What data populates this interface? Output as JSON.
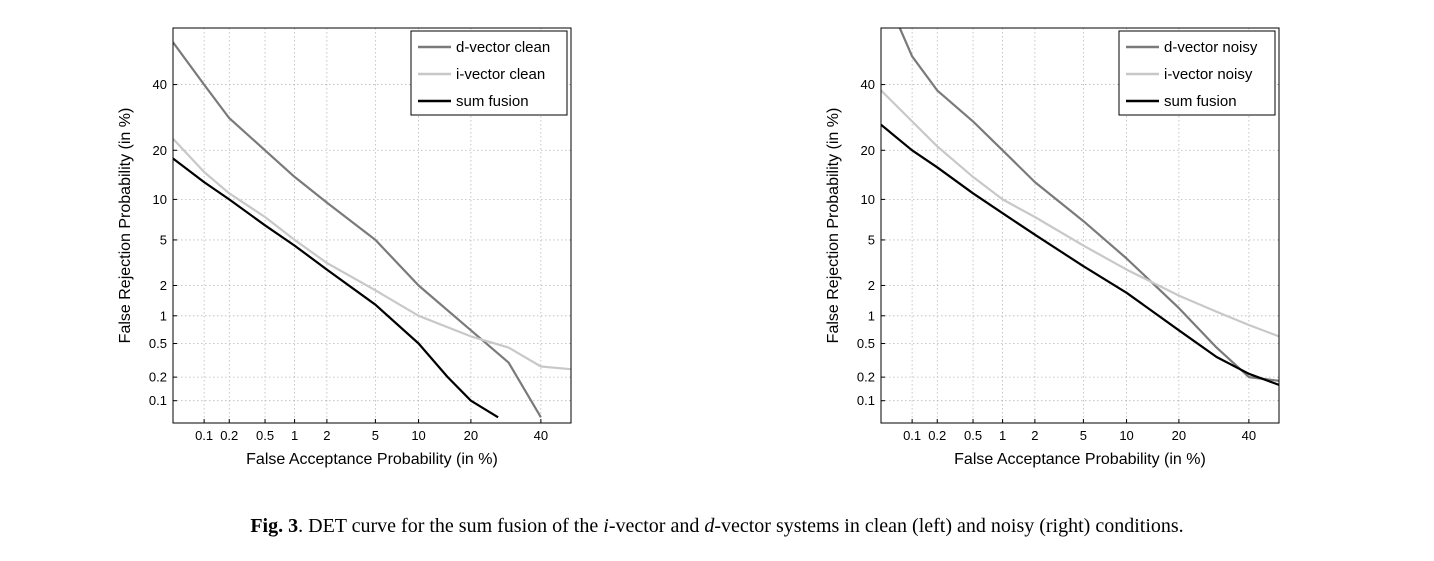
{
  "chart_data": [
    {
      "type": "line",
      "scale": "normal-deviate (DET)",
      "xlabel": "False Acceptance Probability (in %)",
      "ylabel": "False Rejection Probability (in %)",
      "xlim": [
        0.04,
        50
      ],
      "ylim": [
        0.05,
        60
      ],
      "xticks": [
        0.1,
        0.2,
        0.5,
        1,
        2,
        5,
        10,
        20,
        40
      ],
      "xtick_labels": [
        "0.1",
        "0.2",
        "0.5",
        "1",
        "2",
        "5",
        "10",
        "20",
        "40"
      ],
      "yticks": [
        0.1,
        0.2,
        0.5,
        1,
        2,
        5,
        10,
        20,
        40
      ],
      "ytick_labels": [
        "0.1",
        "0.2",
        "0.5",
        "1",
        "2",
        "5",
        "10",
        "20",
        "40"
      ],
      "grid": true,
      "legend_position": "top-right",
      "series": [
        {
          "name": "d-vector clean",
          "color": "#7a7a7a",
          "points": [
            [
              0.04,
              55
            ],
            [
              0.1,
              40
            ],
            [
              0.2,
              29
            ],
            [
              0.5,
              20
            ],
            [
              1,
              14
            ],
            [
              2,
              9.5
            ],
            [
              5,
              5
            ],
            [
              10,
              2
            ],
            [
              20,
              0.7
            ],
            [
              30,
              0.3
            ],
            [
              40,
              0.06
            ]
          ]
        },
        {
          "name": "i-vector clean",
          "color": "#c8c8c8",
          "points": [
            [
              0.04,
              23
            ],
            [
              0.1,
              15
            ],
            [
              0.2,
              11
            ],
            [
              0.5,
              7.5
            ],
            [
              1,
              5
            ],
            [
              2,
              3.2
            ],
            [
              5,
              1.8
            ],
            [
              10,
              1
            ],
            [
              20,
              0.6
            ],
            [
              30,
              0.45
            ],
            [
              40,
              0.27
            ],
            [
              50,
              0.25
            ]
          ]
        },
        {
          "name": "sum fusion",
          "color": "#000000",
          "points": [
            [
              0.04,
              18
            ],
            [
              0.1,
              13
            ],
            [
              0.2,
              10
            ],
            [
              0.5,
              6.5
            ],
            [
              1,
              4.5
            ],
            [
              2,
              2.8
            ],
            [
              5,
              1.3
            ],
            [
              10,
              0.5
            ],
            [
              15,
              0.2
            ],
            [
              20,
              0.1
            ],
            [
              27,
              0.06
            ]
          ]
        }
      ]
    },
    {
      "type": "line",
      "scale": "normal-deviate (DET)",
      "xlabel": "False Acceptance Probability (in %)",
      "ylabel": "False Rejection Probability (in %)",
      "xlim": [
        0.04,
        50
      ],
      "ylim": [
        0.05,
        60
      ],
      "xticks": [
        0.1,
        0.2,
        0.5,
        1,
        2,
        5,
        10,
        20,
        40
      ],
      "xtick_labels": [
        "0.1",
        "0.2",
        "0.5",
        "1",
        "2",
        "5",
        "10",
        "20",
        "40"
      ],
      "yticks": [
        0.1,
        0.2,
        0.5,
        1,
        2,
        5,
        10,
        20,
        40
      ],
      "ytick_labels": [
        "0.1",
        "0.2",
        "0.5",
        "1",
        "2",
        "5",
        "10",
        "20",
        "40"
      ],
      "grid": true,
      "legend_position": "top-right",
      "series": [
        {
          "name": "d-vector noisy",
          "color": "#7a7a7a",
          "points": [
            [
              0.07,
              60
            ],
            [
              0.1,
              50
            ],
            [
              0.2,
              38
            ],
            [
              0.5,
              28
            ],
            [
              1,
              20
            ],
            [
              2,
              13
            ],
            [
              5,
              7
            ],
            [
              10,
              3.5
            ],
            [
              20,
              1.2
            ],
            [
              30,
              0.45
            ],
            [
              40,
              0.2
            ],
            [
              50,
              0.18
            ]
          ]
        },
        {
          "name": "i-vector noisy",
          "color": "#c8c8c8",
          "points": [
            [
              0.04,
              38
            ],
            [
              0.1,
              28
            ],
            [
              0.2,
              21
            ],
            [
              0.5,
              14
            ],
            [
              1,
              10
            ],
            [
              2,
              7.5
            ],
            [
              5,
              4.5
            ],
            [
              10,
              2.8
            ],
            [
              20,
              1.6
            ],
            [
              30,
              1.1
            ],
            [
              40,
              0.8
            ],
            [
              50,
              0.6
            ]
          ]
        },
        {
          "name": "sum fusion",
          "color": "#000000",
          "points": [
            [
              0.04,
              27
            ],
            [
              0.1,
              20
            ],
            [
              0.2,
              16
            ],
            [
              0.5,
              11
            ],
            [
              1,
              8
            ],
            [
              2,
              5.5
            ],
            [
              5,
              3
            ],
            [
              10,
              1.7
            ],
            [
              20,
              0.7
            ],
            [
              30,
              0.35
            ],
            [
              40,
              0.22
            ],
            [
              50,
              0.16
            ]
          ]
        }
      ]
    }
  ],
  "caption": {
    "fig_label": "Fig. 3",
    "part1": ". DET curve for the sum fusion of the ",
    "i_var": "i",
    "part2": "-vector and ",
    "d_var": "d",
    "part3": "-vector systems in clean (left) and noisy (right) conditions."
  }
}
